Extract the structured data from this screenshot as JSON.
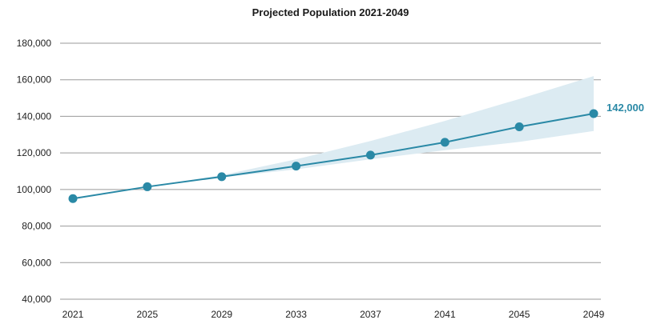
{
  "chart_data": {
    "type": "line",
    "title": "Projected Population 2021-2049",
    "xlabel": "",
    "ylabel": "",
    "x": [
      2021,
      2025,
      2029,
      2033,
      2037,
      2041,
      2045,
      2049
    ],
    "series": [
      {
        "values": [
          95000,
          101500,
          107000,
          112800,
          118800,
          125800,
          134300,
          141500
        ]
      }
    ],
    "band": {
      "lower": [
        95000,
        101500,
        106600,
        111000,
        116500,
        121500,
        126000,
        132000
      ],
      "upper": [
        95000,
        101500,
        107800,
        116500,
        126500,
        137500,
        149500,
        162000
      ]
    },
    "end_label": "142,000",
    "ylim": [
      40000,
      180000
    ],
    "ytick_labels": [
      "180,000",
      "160,000",
      "140,000",
      "120,000",
      "100,000",
      "80,000",
      "60,000",
      "40,000"
    ],
    "ytick_values": [
      180000,
      160000,
      140000,
      120000,
      100000,
      80000,
      60000,
      40000
    ],
    "xtick_labels": [
      "2021",
      "2025",
      "2029",
      "2033",
      "2037",
      "2041",
      "2045",
      "2049"
    ],
    "grid": true,
    "colors": {
      "line": "#2a89a6",
      "band": "#dcebf2",
      "grid": "#9a9a9a",
      "label": "#2a89a6"
    }
  }
}
